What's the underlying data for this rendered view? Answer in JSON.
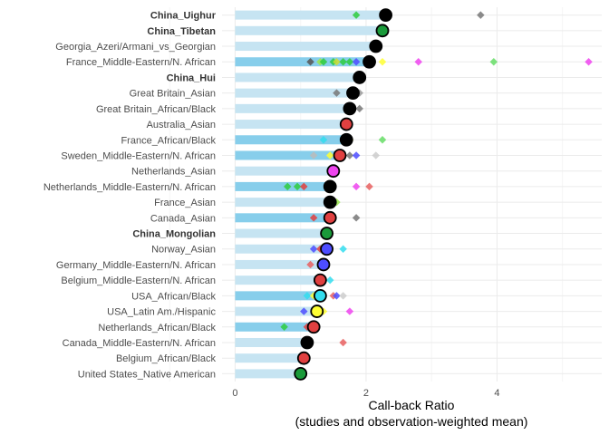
{
  "chart_data": {
    "type": "bar",
    "xlabel_line1": "Call-back Ratio",
    "xlabel_line2": "(studies and observation-weighted mean)",
    "xlim": [
      -0.2,
      5.6
    ],
    "xticks": [
      "0",
      "2",
      "4"
    ],
    "grid": true,
    "legend": "none",
    "categories": [
      {
        "label": "China_Uighur",
        "bold": true,
        "value": 2.3,
        "shade": "light",
        "points": [
          {
            "x": 1.85,
            "c": "#2ecc40"
          },
          {
            "x": 3.75,
            "c": "#777777"
          }
        ],
        "mean_color": "#000000"
      },
      {
        "label": "China_Tibetan",
        "bold": true,
        "value": 2.25,
        "shade": "light",
        "points": [],
        "mean_color": "#1a9a3a"
      },
      {
        "label": "Georgia_Azeri/Armani_vs_Georgian",
        "bold": false,
        "value": 2.15,
        "shade": "light",
        "points": [],
        "mean_color": "#000000"
      },
      {
        "label": "France_Middle-Eastern/N. African",
        "bold": false,
        "value": 2.05,
        "shade": "dark",
        "points": [
          {
            "x": 1.15,
            "c": "#555555"
          },
          {
            "x": 1.3,
            "c": "#99e64d"
          },
          {
            "x": 1.35,
            "c": "#2ecc40"
          },
          {
            "x": 1.5,
            "c": "#2ecc40"
          },
          {
            "x": 1.55,
            "c": "#ccdd33"
          },
          {
            "x": 1.65,
            "c": "#2ecc40"
          },
          {
            "x": 1.75,
            "c": "#2ecc40"
          },
          {
            "x": 1.85,
            "c": "#4d4dff"
          },
          {
            "x": 2.25,
            "c": "#ffff33"
          },
          {
            "x": 2.8,
            "c": "#ee44ee"
          },
          {
            "x": 3.95,
            "c": "#66dd66"
          },
          {
            "x": 5.4,
            "c": "#ee44ee"
          }
        ],
        "mean_color": "#000000"
      },
      {
        "label": "China_Hui",
        "bold": true,
        "value": 1.9,
        "shade": "light",
        "points": [],
        "mean_color": "#000000"
      },
      {
        "label": "Great Britain_Asian",
        "bold": false,
        "value": 1.8,
        "shade": "light",
        "points": [
          {
            "x": 1.55,
            "c": "#777777"
          },
          {
            "x": 1.9,
            "c": "#999999"
          }
        ],
        "mean_color": "#000000"
      },
      {
        "label": "Great Britain_African/Black",
        "bold": false,
        "value": 1.75,
        "shade": "light",
        "points": [
          {
            "x": 1.9,
            "c": "#777777"
          }
        ],
        "mean_color": "#000000"
      },
      {
        "label": "Australia_Asian",
        "bold": false,
        "value": 1.7,
        "shade": "light",
        "points": [],
        "mean_color": "#e04040"
      },
      {
        "label": "France_African/Black",
        "bold": false,
        "value": 1.7,
        "shade": "dark",
        "points": [
          {
            "x": 1.35,
            "c": "#33ddee"
          },
          {
            "x": 1.75,
            "c": "#ffff33"
          },
          {
            "x": 2.25,
            "c": "#66dd66"
          }
        ],
        "mean_color": "#000000"
      },
      {
        "label": "Sweden_Middle-Eastern/N. African",
        "bold": false,
        "value": 1.6,
        "shade": "dark",
        "points": [
          {
            "x": 1.2,
            "c": "#bbbbbb"
          },
          {
            "x": 1.45,
            "c": "#ffff33"
          },
          {
            "x": 1.75,
            "c": "#777777"
          },
          {
            "x": 1.85,
            "c": "#4d4dff"
          },
          {
            "x": 2.15,
            "c": "#cccccc"
          }
        ],
        "mean_color": "#e04040"
      },
      {
        "label": "Netherlands_Asian",
        "bold": false,
        "value": 1.5,
        "shade": "light",
        "points": [],
        "mean_color": "#ee44ee"
      },
      {
        "label": "Netherlands_Middle-Eastern/N. African",
        "bold": false,
        "value": 1.45,
        "shade": "dark",
        "points": [
          {
            "x": 0.8,
            "c": "#2ecc40"
          },
          {
            "x": 0.95,
            "c": "#2ecc40"
          },
          {
            "x": 1.05,
            "c": "#e04040"
          },
          {
            "x": 1.85,
            "c": "#ee44ee"
          },
          {
            "x": 2.05,
            "c": "#e86060"
          }
        ],
        "mean_color": "#000000"
      },
      {
        "label": "France_Asian",
        "bold": false,
        "value": 1.45,
        "shade": "light",
        "points": [
          {
            "x": 1.55,
            "c": "#99e64d"
          }
        ],
        "mean_color": "#000000"
      },
      {
        "label": "Canada_Asian",
        "bold": false,
        "value": 1.45,
        "shade": "dark",
        "points": [
          {
            "x": 1.2,
            "c": "#e04040"
          },
          {
            "x": 1.85,
            "c": "#777777"
          }
        ],
        "mean_color": "#e04040"
      },
      {
        "label": "China_Mongolian",
        "bold": true,
        "value": 1.4,
        "shade": "light",
        "points": [],
        "mean_color": "#1a9a3a"
      },
      {
        "label": "Norway_Asian",
        "bold": false,
        "value": 1.4,
        "shade": "light",
        "points": [
          {
            "x": 1.2,
            "c": "#4d4dff"
          },
          {
            "x": 1.3,
            "c": "#e04040"
          },
          {
            "x": 1.65,
            "c": "#33ddee"
          }
        ],
        "mean_color": "#4d4dff"
      },
      {
        "label": "Germany_Middle-Eastern/N. African",
        "bold": false,
        "value": 1.35,
        "shade": "light",
        "points": [
          {
            "x": 1.15,
            "c": "#e86060"
          }
        ],
        "mean_color": "#4d4dff"
      },
      {
        "label": "Belgium_Middle-Eastern/N. African",
        "bold": false,
        "value": 1.3,
        "shade": "light",
        "points": [
          {
            "x": 1.45,
            "c": "#33ddee"
          }
        ],
        "mean_color": "#e04040"
      },
      {
        "label": "USA_African/Black",
        "bold": false,
        "value": 1.3,
        "shade": "dark",
        "points": [
          {
            "x": 1.1,
            "c": "#33ddee"
          },
          {
            "x": 1.2,
            "c": "#ffff33"
          },
          {
            "x": 1.5,
            "c": "#e86060"
          },
          {
            "x": 1.55,
            "c": "#4d4dff"
          },
          {
            "x": 1.65,
            "c": "#cccccc"
          }
        ],
        "mean_color": "#33ddee"
      },
      {
        "label": "USA_Latin Am./Hispanic",
        "bold": false,
        "value": 1.25,
        "shade": "light",
        "points": [
          {
            "x": 1.05,
            "c": "#4d4dff"
          },
          {
            "x": 1.35,
            "c": "#ffff33"
          },
          {
            "x": 1.75,
            "c": "#ee44ee"
          }
        ],
        "mean_color": "#ffff33"
      },
      {
        "label": "Netherlands_African/Black",
        "bold": false,
        "value": 1.2,
        "shade": "dark",
        "points": [
          {
            "x": 0.75,
            "c": "#2ecc40"
          },
          {
            "x": 1.1,
            "c": "#e04040"
          }
        ],
        "mean_color": "#e04040"
      },
      {
        "label": "Canada_Middle-Eastern/N. African",
        "bold": false,
        "value": 1.1,
        "shade": "light",
        "points": [
          {
            "x": 1.65,
            "c": "#e86060"
          }
        ],
        "mean_color": "#000000"
      },
      {
        "label": "Belgium_African/Black",
        "bold": false,
        "value": 1.05,
        "shade": "light",
        "points": [],
        "mean_color": "#e04040"
      },
      {
        "label": "United States_Native American",
        "bold": false,
        "value": 1.0,
        "shade": "light",
        "points": [],
        "mean_color": "#1a9a3a"
      }
    ],
    "colors": {
      "bar_dark": "#87ceeb",
      "bar_light": "#c6e4f2",
      "grid_major": "#ebebeb",
      "grid_minor": "#f5f5f5",
      "mean_outline": "#000000"
    }
  }
}
